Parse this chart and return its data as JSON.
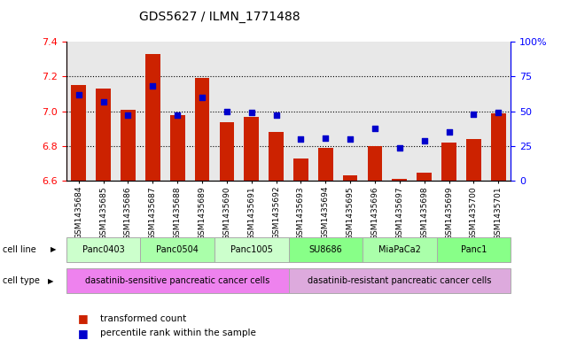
{
  "title": "GDS5627 / ILMN_1771488",
  "samples": [
    "GSM1435684",
    "GSM1435685",
    "GSM1435686",
    "GSM1435687",
    "GSM1435688",
    "GSM1435689",
    "GSM1435690",
    "GSM1435691",
    "GSM1435692",
    "GSM1435693",
    "GSM1435694",
    "GSM1435695",
    "GSM1435696",
    "GSM1435697",
    "GSM1435698",
    "GSM1435699",
    "GSM1435700",
    "GSM1435701"
  ],
  "bar_values": [
    7.15,
    7.13,
    7.01,
    7.33,
    6.98,
    7.19,
    6.94,
    6.97,
    6.88,
    6.73,
    6.79,
    6.63,
    6.8,
    6.61,
    6.65,
    6.82,
    6.84,
    6.99
  ],
  "dot_values": [
    62,
    57,
    47,
    68,
    47,
    60,
    50,
    49,
    47,
    30,
    31,
    30,
    38,
    24,
    29,
    35,
    48,
    49
  ],
  "bar_color": "#cc2200",
  "dot_color": "#0000cc",
  "ylim_left": [
    6.6,
    7.4
  ],
  "ylim_right": [
    0,
    100
  ],
  "yticks_left": [
    6.6,
    6.8,
    7.0,
    7.2,
    7.4
  ],
  "yticks_right": [
    0,
    25,
    50,
    75,
    100
  ],
  "ytick_labels_right": [
    "0",
    "25",
    "50",
    "75",
    "100%"
  ],
  "grid_values": [
    6.8,
    7.0,
    7.2
  ],
  "cell_lines": [
    {
      "label": "Panc0403",
      "start": 0,
      "end": 2,
      "color": "#ccffcc"
    },
    {
      "label": "Panc0504",
      "start": 3,
      "end": 5,
      "color": "#aaffaa"
    },
    {
      "label": "Panc1005",
      "start": 6,
      "end": 8,
      "color": "#ccffcc"
    },
    {
      "label": "SU8686",
      "start": 9,
      "end": 11,
      "color": "#88ff88"
    },
    {
      "label": "MiaPaCa2",
      "start": 12,
      "end": 14,
      "color": "#aaffaa"
    },
    {
      "label": "Panc1",
      "start": 15,
      "end": 17,
      "color": "#88ff88"
    }
  ],
  "cell_types": [
    {
      "label": "dasatinib-sensitive pancreatic cancer cells",
      "start": 0,
      "end": 8,
      "color": "#ee82ee"
    },
    {
      "label": "dasatinib-resistant pancreatic cancer cells",
      "start": 9,
      "end": 17,
      "color": "#ddaadd"
    }
  ],
  "legend_bar_label": "transformed count",
  "legend_dot_label": "percentile rank within the sample",
  "cell_line_label": "cell line",
  "cell_type_label": "cell type",
  "bar_width": 0.6,
  "bg_color": "#e8e8e8"
}
